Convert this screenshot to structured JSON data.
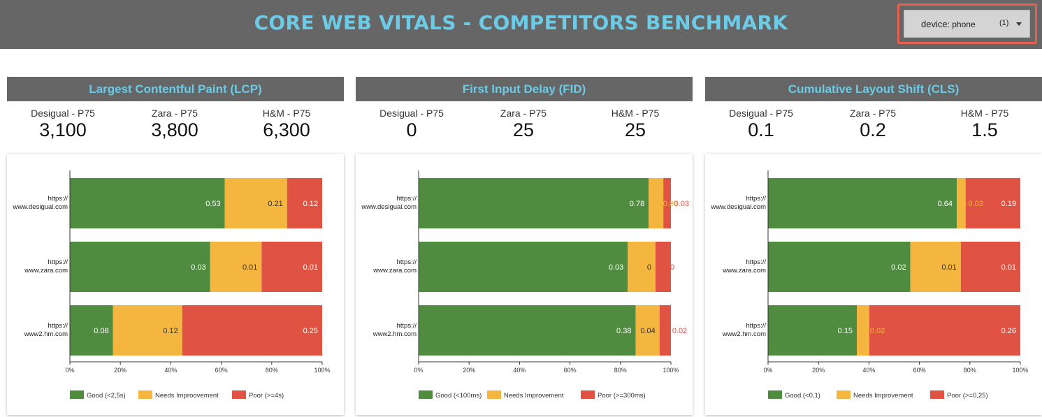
{
  "header": {
    "title": "CORE WEB VITALS - COMPETITORS BENCHMARK",
    "device_filter": {
      "label": "device",
      "value": "phone",
      "count": "(1)"
    }
  },
  "colors": {
    "good": "#4f8c3f",
    "needs_improvement": "#f4b63f",
    "poor": "#e05241",
    "title": "#6ccbe6",
    "header_bg": "#666666"
  },
  "panels": [
    {
      "title": "Largest Contentful Paint (LCP)",
      "kpis": [
        {
          "label": "Desigual - P75",
          "value": "3,100"
        },
        {
          "label": "Zara - P75",
          "value": "3,800"
        },
        {
          "label": "H&M - P75",
          "value": "6,300"
        }
      ]
    },
    {
      "title": "First Input Delay (FID)",
      "kpis": [
        {
          "label": "Desigual - P75",
          "value": "0"
        },
        {
          "label": "Zara - P75",
          "value": "25"
        },
        {
          "label": "H&M - P75",
          "value": "25"
        }
      ]
    },
    {
      "title": "Cumulative Layout Shift (CLS)",
      "kpis": [
        {
          "label": "Desigual - P75",
          "value": "0.1"
        },
        {
          "label": "Zara - P75",
          "value": "0.2"
        },
        {
          "label": "H&M - P75",
          "value": "1.5"
        }
      ]
    }
  ],
  "chart_data": [
    {
      "type": "bar",
      "orientation": "horizontal",
      "stacked": "percent",
      "categories": [
        "https://www.desigual.com",
        "https://www.zara.com",
        "https://www2.hm.com"
      ],
      "category_lines": [
        [
          "https://",
          "www.desigual.com"
        ],
        [
          "https://",
          "www.zara.com"
        ],
        [
          "https://",
          "www2.hm.com"
        ]
      ],
      "series": [
        {
          "name": "Good (<2,5s)",
          "shares": [
            0.614,
            0.556,
            0.171
          ],
          "labels": [
            "0.53",
            "0.03",
            "0.08"
          ]
        },
        {
          "name": "Needs Improovement",
          "shares": [
            0.247,
            0.204,
            0.274
          ],
          "labels": [
            "0.21",
            "0.01",
            "0.12"
          ]
        },
        {
          "name": "Poor (>=4s)",
          "shares": [
            0.139,
            0.24,
            0.555
          ],
          "labels": [
            "0.12",
            "0.01",
            "0.25"
          ]
        }
      ],
      "xlim": [
        0,
        100
      ],
      "xticks": [
        "0%",
        "20%",
        "40%",
        "60%",
        "80%",
        "100%"
      ],
      "legend": "bottom"
    },
    {
      "type": "bar",
      "orientation": "horizontal",
      "stacked": "percent",
      "categories": [
        "https://www.desigual.com",
        "https://www.zara.com",
        "https://www2.hm.com"
      ],
      "category_lines": [
        [
          "https://",
          "www.desigual.com"
        ],
        [
          "https://",
          "www.zara.com"
        ],
        [
          "https://",
          "www2.hm.com"
        ]
      ],
      "series": [
        {
          "name": "Good (<100ms)",
          "shares": [
            0.912,
            0.829,
            0.86
          ],
          "labels": [
            "0.78",
            "0.03",
            "0.38"
          ]
        },
        {
          "name": "Needs Improvement",
          "shares": [
            0.058,
            0.11,
            0.095
          ],
          "labels": [
            "0.05",
            "0",
            "0.04"
          ]
        },
        {
          "name": "Poor (>=300ms)",
          "shares": [
            0.03,
            0.061,
            0.045
          ],
          "labels": [
            "0.03",
            "0",
            "0.02"
          ]
        }
      ],
      "xlim": [
        0,
        100
      ],
      "xticks": [
        "0%",
        "20%",
        "40%",
        "60%",
        "80%",
        "100%"
      ],
      "legend": "bottom"
    },
    {
      "type": "bar",
      "orientation": "horizontal",
      "stacked": "percent",
      "categories": [
        "https://www.desigual.com",
        "https://www.zara.com",
        "https://www2.hm.com"
      ],
      "category_lines": [
        [
          "https://",
          "www.desigual.com"
        ],
        [
          "https://",
          "www.zara.com"
        ],
        [
          "https://",
          "www2.hm.com"
        ]
      ],
      "series": [
        {
          "name": "Good (<0,1)",
          "shares": [
            0.748,
            0.564,
            0.352
          ],
          "labels": [
            "0.64",
            "0.02",
            "0.15"
          ]
        },
        {
          "name": "Needs Improvement",
          "shares": [
            0.035,
            0.2,
            0.049
          ],
          "labels": [
            "0.03",
            "0.01",
            "0.02"
          ]
        },
        {
          "name": "Poor (>=0,25)",
          "shares": [
            0.217,
            0.236,
            0.599
          ],
          "labels": [
            "0.19",
            "0.01",
            "0.26"
          ]
        }
      ],
      "xlim": [
        0,
        100
      ],
      "xticks": [
        "0%",
        "20%",
        "40%",
        "60%",
        "80%",
        "100%"
      ],
      "legend": "bottom"
    }
  ]
}
